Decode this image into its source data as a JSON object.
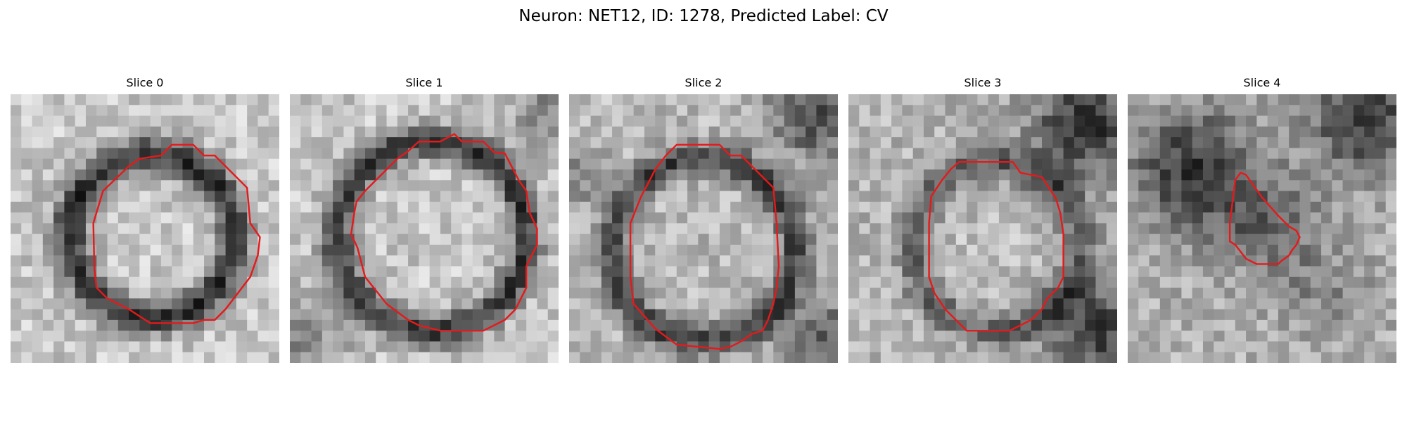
{
  "figure": {
    "title": "Neuron: NET12, ID: 1278, Predicted Label: CV"
  },
  "colors": {
    "contour": "#e41a1c",
    "membrane_dark": "#1e1e1e",
    "background_light": "#c8c8c8",
    "interior_light": "#bfbfbf"
  },
  "panels": [
    {
      "title": "Slice 0",
      "contour": [
        [
          15,
          4.7
        ],
        [
          17,
          4.7
        ],
        [
          18,
          5.7
        ],
        [
          19,
          5.7
        ],
        [
          22,
          8.7
        ],
        [
          22.3,
          12
        ],
        [
          23.2,
          13.3
        ],
        [
          23,
          15
        ],
        [
          22.3,
          17
        ],
        [
          20,
          20
        ],
        [
          19,
          21
        ],
        [
          18,
          21
        ],
        [
          17,
          21.3
        ],
        [
          13,
          21.3
        ],
        [
          11,
          20
        ],
        [
          9,
          19
        ],
        [
          8,
          18
        ],
        [
          7.8,
          16.3
        ],
        [
          7.7,
          12
        ],
        [
          8.6,
          9
        ],
        [
          11,
          6.7
        ],
        [
          12,
          6
        ],
        [
          14,
          5.7
        ]
      ]
    },
    {
      "title": "Slice 1",
      "contour": [
        [
          15.3,
          3.7
        ],
        [
          16,
          4.4
        ],
        [
          18,
          4.4
        ],
        [
          19,
          5.4
        ],
        [
          20,
          5.5
        ],
        [
          21.3,
          8
        ],
        [
          22,
          9
        ],
        [
          22.3,
          11
        ],
        [
          23,
          12.5
        ],
        [
          23,
          14
        ],
        [
          22,
          16
        ],
        [
          22,
          18
        ],
        [
          21,
          20
        ],
        [
          20,
          21
        ],
        [
          18,
          22
        ],
        [
          16,
          22
        ],
        [
          14,
          22
        ],
        [
          12,
          21.5
        ],
        [
          11,
          21
        ],
        [
          9,
          19.5
        ],
        [
          7,
          17
        ],
        [
          6.3,
          14.3
        ],
        [
          5.7,
          13
        ],
        [
          6,
          11
        ],
        [
          6.2,
          10
        ],
        [
          7,
          9
        ],
        [
          8,
          8
        ],
        [
          9,
          7
        ],
        [
          10,
          6
        ],
        [
          11,
          5.3
        ],
        [
          12,
          4.4
        ],
        [
          14,
          4.4
        ]
      ]
    },
    {
      "title": "Slice 2",
      "contour": [
        [
          10,
          4.7
        ],
        [
          14,
          4.7
        ],
        [
          15,
          5.7
        ],
        [
          16,
          5.7
        ],
        [
          19,
          8.7
        ],
        [
          19.3,
          12
        ],
        [
          19.5,
          16
        ],
        [
          19.3,
          18
        ],
        [
          19,
          19.5
        ],
        [
          18.5,
          21
        ],
        [
          18,
          22
        ],
        [
          17,
          22.3
        ],
        [
          16,
          23
        ],
        [
          15,
          23.5
        ],
        [
          14,
          23.7
        ],
        [
          13,
          23.6
        ],
        [
          10,
          23.3
        ],
        [
          8,
          21.8
        ],
        [
          6,
          19.5
        ],
        [
          5.7,
          17
        ],
        [
          5.7,
          13.5
        ],
        [
          5.7,
          12
        ],
        [
          6.7,
          9.5
        ],
        [
          7.5,
          8
        ],
        [
          8,
          7
        ],
        [
          9,
          5.7
        ]
      ]
    },
    {
      "title": "Slice 3",
      "contour": [
        [
          10.3,
          6.3
        ],
        [
          15.3,
          6.3
        ],
        [
          16,
          7.3
        ],
        [
          18,
          7.7
        ],
        [
          19.3,
          9.7
        ],
        [
          19.7,
          11
        ],
        [
          20,
          13
        ],
        [
          20,
          17
        ],
        [
          19.5,
          18
        ],
        [
          18.5,
          19
        ],
        [
          18,
          20
        ],
        [
          17,
          21
        ],
        [
          16,
          21.5
        ],
        [
          15,
          22
        ],
        [
          12,
          22
        ],
        [
          11,
          22
        ],
        [
          10,
          21
        ],
        [
          9,
          20
        ],
        [
          8,
          18.5
        ],
        [
          7.5,
          17
        ],
        [
          7.5,
          12
        ],
        [
          7.7,
          9.5
        ],
        [
          8.7,
          8
        ],
        [
          9.5,
          7
        ]
      ]
    },
    {
      "title": "Slice 4",
      "contour": [
        [
          10.5,
          7.3
        ],
        [
          11,
          7.5
        ],
        [
          12.5,
          9.6
        ],
        [
          14,
          11.3
        ],
        [
          15,
          12.3
        ],
        [
          15.7,
          12.7
        ],
        [
          16,
          13.3
        ],
        [
          15.7,
          14
        ],
        [
          15.3,
          14.5
        ],
        [
          15,
          15
        ],
        [
          14.3,
          15.5
        ],
        [
          14,
          15.8
        ],
        [
          12,
          15.8
        ],
        [
          11,
          15.3
        ],
        [
          10,
          14
        ],
        [
          9.5,
          13.7
        ],
        [
          9.5,
          12
        ],
        [
          10,
          8
        ]
      ]
    }
  ]
}
